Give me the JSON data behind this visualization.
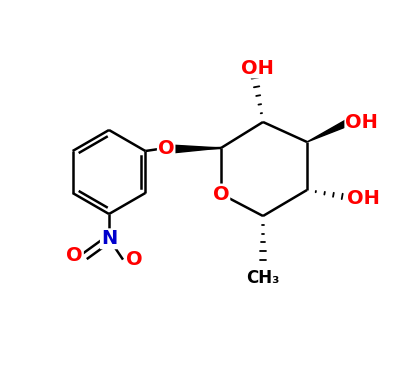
{
  "bg_color": "#ffffff",
  "bond_color": "#000000",
  "bond_width": 1.8,
  "O_color": "#ff0000",
  "N_color": "#0000cd",
  "font_size_atoms": 14,
  "font_size_ch3": 12,
  "figsize": [
    4.02,
    3.76
  ],
  "dpi": 100,
  "xlim": [
    0,
    10
  ],
  "ylim": [
    0,
    9.4
  ]
}
